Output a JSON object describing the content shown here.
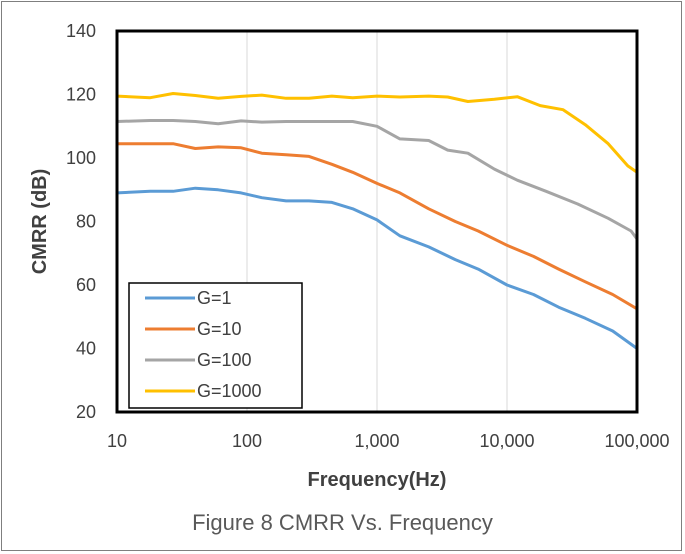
{
  "chart_data": {
    "type": "line",
    "title": "",
    "caption": "Figure 8 CMRR Vs. Frequency",
    "xlabel": "Frequency(Hz)",
    "ylabel": "CMRR (dB)",
    "xscale": "log",
    "xlim": [
      10,
      100000
    ],
    "ylim": [
      20,
      140
    ],
    "x_ticks": [
      10,
      100,
      1000,
      10000,
      100000
    ],
    "x_tick_labels": [
      "10",
      "100",
      "1,000",
      "10,000",
      "100,000"
    ],
    "y_ticks": [
      20,
      40,
      60,
      80,
      100,
      120,
      140
    ],
    "y_tick_labels": [
      "20",
      "40",
      "60",
      "80",
      "100",
      "120",
      "140"
    ],
    "grid": "vertical",
    "legend_position": "bottom-left",
    "series": [
      {
        "name": "G=1",
        "color": "#5b9bd5",
        "points": [
          [
            10,
            89
          ],
          [
            18,
            89.5
          ],
          [
            27,
            89.5
          ],
          [
            40,
            90.5
          ],
          [
            60,
            90
          ],
          [
            90,
            89
          ],
          [
            130,
            87.5
          ],
          [
            200,
            86.5
          ],
          [
            300,
            86.5
          ],
          [
            450,
            86
          ],
          [
            650,
            84
          ],
          [
            1000,
            80.5
          ],
          [
            1500,
            75.5
          ],
          [
            2500,
            72
          ],
          [
            4000,
            68
          ],
          [
            6000,
            65
          ],
          [
            10000,
            60
          ],
          [
            16000,
            57
          ],
          [
            25000,
            53
          ],
          [
            40000,
            49.5
          ],
          [
            65000,
            45.5
          ],
          [
            100000,
            40
          ]
        ]
      },
      {
        "name": "G=10",
        "color": "#ed7d31",
        "points": [
          [
            10,
            104.5
          ],
          [
            18,
            104.5
          ],
          [
            27,
            104.5
          ],
          [
            40,
            103
          ],
          [
            60,
            103.5
          ],
          [
            90,
            103.2
          ],
          [
            130,
            101.5
          ],
          [
            200,
            101
          ],
          [
            300,
            100.5
          ],
          [
            450,
            98
          ],
          [
            650,
            95.5
          ],
          [
            1000,
            92
          ],
          [
            1500,
            89
          ],
          [
            2500,
            84
          ],
          [
            4000,
            80
          ],
          [
            6000,
            77
          ],
          [
            10000,
            72.5
          ],
          [
            16000,
            69
          ],
          [
            25000,
            65
          ],
          [
            40000,
            61
          ],
          [
            65000,
            57
          ],
          [
            100000,
            52.5
          ]
        ]
      },
      {
        "name": "G=100",
        "color": "#a5a5a5",
        "points": [
          [
            10,
            111.5
          ],
          [
            18,
            111.8
          ],
          [
            27,
            111.8
          ],
          [
            40,
            111.5
          ],
          [
            60,
            110.8
          ],
          [
            90,
            111.7
          ],
          [
            130,
            111.3
          ],
          [
            200,
            111.5
          ],
          [
            300,
            111.5
          ],
          [
            450,
            111.5
          ],
          [
            650,
            111.5
          ],
          [
            1000,
            110
          ],
          [
            1500,
            106
          ],
          [
            2500,
            105.5
          ],
          [
            3500,
            102.5
          ],
          [
            5000,
            101.5
          ],
          [
            8000,
            96.5
          ],
          [
            12000,
            93
          ],
          [
            20000,
            89.5
          ],
          [
            35000,
            85.5
          ],
          [
            60000,
            81
          ],
          [
            90000,
            77
          ],
          [
            100000,
            74.5
          ]
        ]
      },
      {
        "name": "G=1000",
        "color": "#ffc000",
        "points": [
          [
            10,
            119.5
          ],
          [
            18,
            119
          ],
          [
            27,
            120.3
          ],
          [
            40,
            119.7
          ],
          [
            60,
            118.8
          ],
          [
            90,
            119.4
          ],
          [
            130,
            119.8
          ],
          [
            200,
            118.8
          ],
          [
            300,
            118.8
          ],
          [
            450,
            119.5
          ],
          [
            650,
            119
          ],
          [
            1000,
            119.5
          ],
          [
            1500,
            119.2
          ],
          [
            2500,
            119.5
          ],
          [
            3500,
            119.2
          ],
          [
            5000,
            117.8
          ],
          [
            8000,
            118.5
          ],
          [
            12000,
            119.3
          ],
          [
            18000,
            116.5
          ],
          [
            27000,
            115.2
          ],
          [
            40000,
            110.5
          ],
          [
            60000,
            104.5
          ],
          [
            85000,
            97.5
          ],
          [
            100000,
            95.5
          ]
        ]
      }
    ]
  }
}
